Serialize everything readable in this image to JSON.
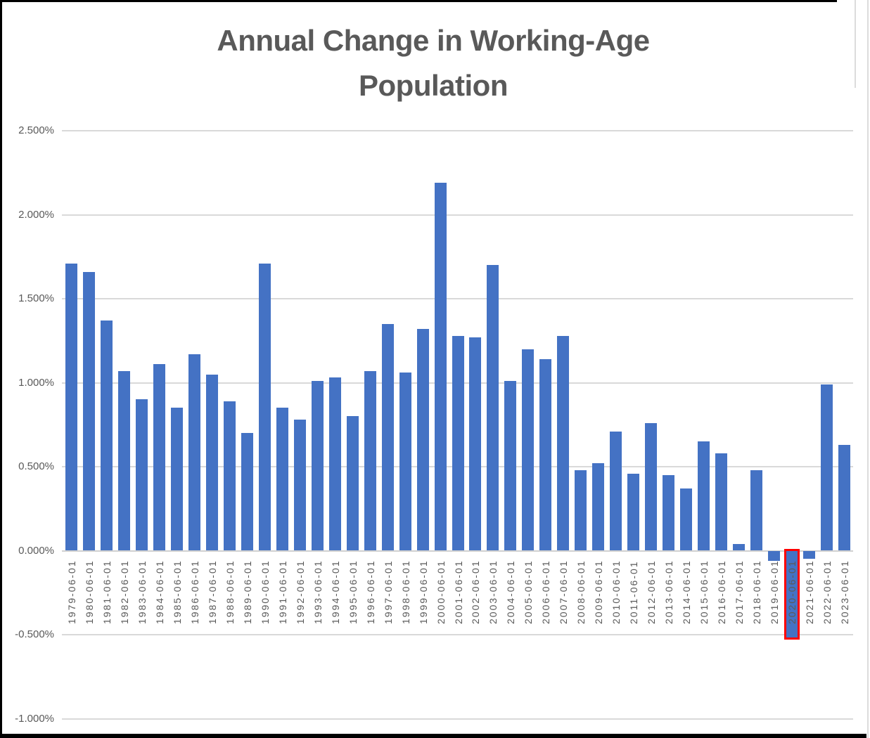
{
  "chart_data": {
    "type": "bar",
    "title": "Annual Change in Working-Age Population",
    "title_lines": [
      "Annual Change in Working-Age",
      "Population"
    ],
    "xlabel": "",
    "ylabel": "",
    "legend": "none",
    "grid": true,
    "ylim": [
      -1.0,
      2.5
    ],
    "ytick_labels": [
      "2.500%",
      "2.000%",
      "1.500%",
      "1.000%",
      "0.500%",
      "0.000%",
      "-0.500%",
      "-1.000%"
    ],
    "ytick_values": [
      2.5,
      2.0,
      1.5,
      1.0,
      0.5,
      0.0,
      -0.5,
      -1.0
    ],
    "value_unit": "percent",
    "bar_color": "#4472C4",
    "gridline_color": "#D9D9D9",
    "text_color": "#595959",
    "highlight": {
      "category": "2020-06-01",
      "border_color": "#FF0000"
    },
    "categories": [
      "1979-06-01",
      "1980-06-01",
      "1981-06-01",
      "1982-06-01",
      "1983-06-01",
      "1984-06-01",
      "1985-06-01",
      "1986-06-01",
      "1987-06-01",
      "1988-06-01",
      "1989-06-01",
      "1990-06-01",
      "1991-06-01",
      "1992-06-01",
      "1993-06-01",
      "1994-06-01",
      "1995-06-01",
      "1996-06-01",
      "1997-06-01",
      "1998-06-01",
      "1999-06-01",
      "2000-06-01",
      "2001-06-01",
      "2002-06-01",
      "2003-06-01",
      "2004-06-01",
      "2005-06-01",
      "2006-06-01",
      "2007-06-01",
      "2008-06-01",
      "2009-06-01",
      "2010-06-01",
      "2011-06-01",
      "2012-06-01",
      "2013-06-01",
      "2014-06-01",
      "2015-06-01",
      "2016-06-01",
      "2017-06-01",
      "2018-06-01",
      "2019-06-01",
      "2020-06-01",
      "2021-06-01",
      "2022-06-01",
      "2023-06-01"
    ],
    "values": [
      1.71,
      1.66,
      1.37,
      1.07,
      0.9,
      1.11,
      0.85,
      1.17,
      1.05,
      0.89,
      0.7,
      1.71,
      0.85,
      0.78,
      1.01,
      1.03,
      0.8,
      1.07,
      1.35,
      1.06,
      1.32,
      2.19,
      1.28,
      1.27,
      1.7,
      1.01,
      1.2,
      1.14,
      1.28,
      0.48,
      0.52,
      0.71,
      0.46,
      0.76,
      0.45,
      0.37,
      0.65,
      0.58,
      0.04,
      0.48,
      -0.06,
      -0.52,
      -0.05,
      0.99,
      0.63
    ]
  }
}
